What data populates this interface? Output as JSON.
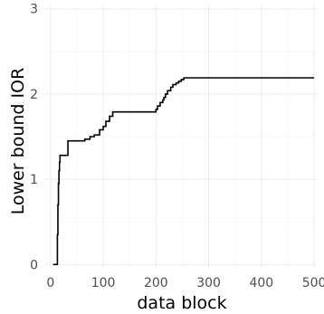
{
  "chart_data": {
    "type": "line",
    "step": true,
    "xlabel": "data block",
    "ylabel": "Lower bound IOR",
    "xlim": [
      -10,
      505
    ],
    "ylim": [
      -0.05,
      3.05
    ],
    "xticks": [
      0,
      100,
      200,
      300,
      400,
      500
    ],
    "yticks": [
      0,
      1,
      2,
      3
    ],
    "grid": true,
    "theme_colors": {
      "background": "#ffffff",
      "grid": "#ebebeb",
      "line": "#000000",
      "tick_text": "#4d4d4d"
    },
    "series": [
      {
        "x": [
          5,
          12,
          13,
          14,
          15,
          16,
          17,
          18,
          33,
          65,
          75,
          83,
          93,
          100,
          105,
          112,
          118,
          200,
          203,
          208,
          213,
          215,
          218,
          222,
          228,
          232,
          238,
          243,
          248,
          253,
          500
        ],
        "y": [
          0.0,
          0.0,
          0.35,
          0.7,
          0.95,
          1.1,
          1.2,
          1.28,
          1.45,
          1.47,
          1.5,
          1.52,
          1.58,
          1.62,
          1.68,
          1.74,
          1.79,
          1.82,
          1.86,
          1.9,
          1.93,
          1.96,
          2.0,
          2.04,
          2.08,
          2.11,
          2.13,
          2.15,
          2.17,
          2.19,
          2.19
        ]
      }
    ]
  }
}
